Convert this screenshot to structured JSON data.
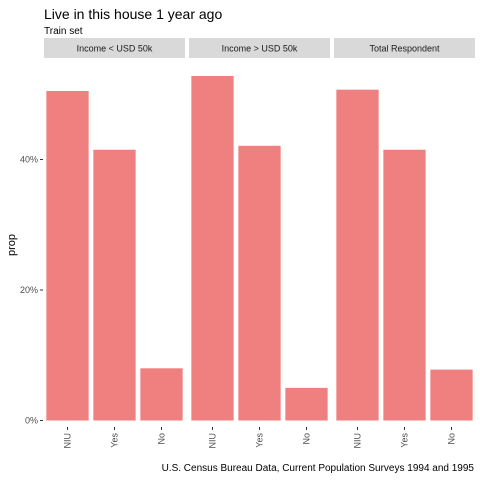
{
  "chart_data": {
    "type": "bar",
    "title": "Live in this house 1 year ago",
    "subtitle": "Train set",
    "caption": "U.S. Census Bureau Data, Current Population Surveys 1994 and 1995",
    "xlabel": "",
    "ylabel": "prop",
    "categories": [
      "NIU",
      "Yes",
      "No"
    ],
    "ylim": [
      0,
      0.55
    ],
    "y_ticks": [
      0,
      0.2,
      0.4
    ],
    "y_tick_labels": [
      "0%",
      "20%",
      "40%"
    ],
    "grid": false,
    "bar_color": "#F08080",
    "strip_fill": "#D9D9D9",
    "panels": [
      {
        "label": "Income < USD 50k",
        "values": [
          0.505,
          0.415,
          0.08
        ]
      },
      {
        "label": "Income > USD 50k",
        "values": [
          0.528,
          0.421,
          0.05
        ]
      },
      {
        "label": "Total Respondent",
        "values": [
          0.507,
          0.415,
          0.078
        ]
      }
    ]
  }
}
